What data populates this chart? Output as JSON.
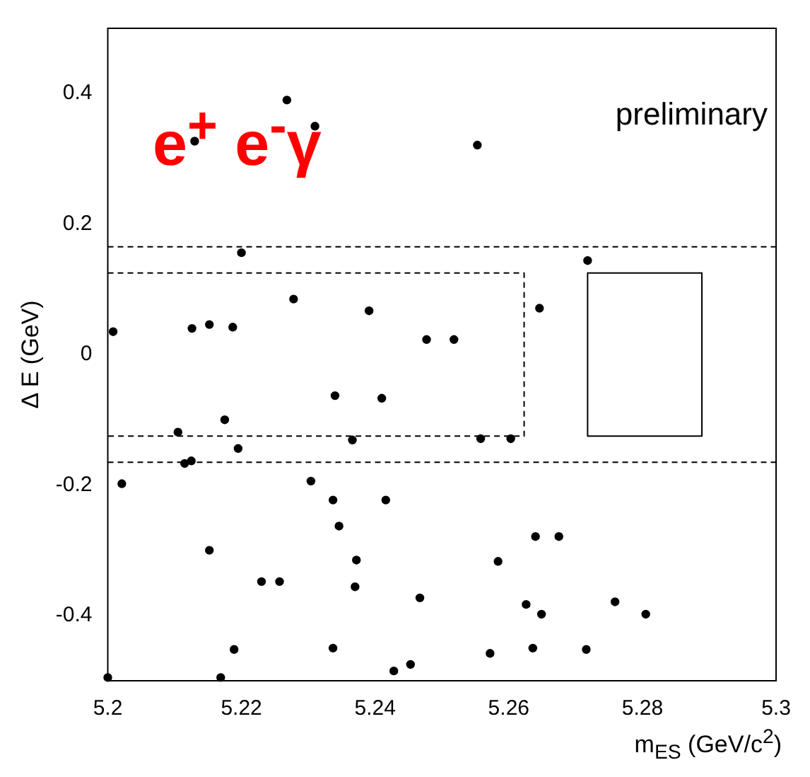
{
  "chart_data": {
    "type": "scatter",
    "xlabel": "m$_{ES}$ (GeV/c$^{2}$)",
    "ylabel": "Δ E (GeV)",
    "xlim": [
      5.2,
      5.3
    ],
    "xticks": [
      5.2,
      5.22,
      5.24,
      5.26,
      5.28,
      5.3
    ],
    "ylim": [
      -0.5,
      0.5
    ],
    "yticks": [
      -0.4,
      -0.2,
      0,
      0.2,
      0.4
    ],
    "grid": false,
    "legend": false,
    "marker": "circle",
    "annotations": [
      "e$^{+}$ e$^{-}$γ",
      "preliminary"
    ],
    "ref_lines": [
      {
        "axis": "y",
        "value": 0.165,
        "color": "#000000",
        "line_style": "dashed"
      },
      {
        "axis": "y",
        "value": -0.165,
        "color": "#000000",
        "line_style": "dashed"
      }
    ],
    "series": [
      {
        "color": "#000000",
        "x": [
          5.213,
          5.2268,
          5.231,
          5.2553,
          5.22,
          5.2718,
          5.2008,
          5.2126,
          5.2152,
          5.2187,
          5.2278,
          5.2391,
          5.2646,
          5.2477,
          5.2518,
          5.2105,
          5.2175,
          5.234,
          5.241,
          5.2366,
          5.2558,
          5.2603,
          5.2195,
          5.2115,
          5.2125,
          5.2021,
          5.2304,
          5.2337,
          5.2416,
          5.2346,
          5.2152,
          5.264,
          5.2675,
          5.2584,
          5.2372,
          5.223,
          5.2257,
          5.237,
          5.2467,
          5.2759,
          5.2626,
          5.2649,
          5.2805,
          5.2189,
          5.2337,
          5.2572,
          5.2636,
          5.2716,
          5.2453,
          5.2428,
          5.2169,
          5.2
        ],
        "values": [
          0.327,
          0.39,
          0.35,
          0.321,
          0.156,
          0.144,
          0.035,
          0.04,
          0.046,
          0.042,
          0.085,
          0.067,
          0.071,
          0.023,
          0.023,
          -0.119,
          -0.1,
          -0.063,
          -0.067,
          -0.131,
          -0.129,
          -0.129,
          -0.144,
          -0.167,
          -0.163,
          -0.198,
          -0.194,
          -0.223,
          -0.223,
          -0.263,
          -0.3,
          -0.279,
          -0.279,
          -0.317,
          -0.315,
          -0.348,
          -0.348,
          -0.356,
          -0.373,
          -0.379,
          -0.383,
          -0.398,
          -0.398,
          -0.452,
          -0.45,
          -0.458,
          -0.45,
          -0.452,
          -0.475,
          -0.485,
          -0.495,
          -0.495
        ]
      },
      {
        "type": "line",
        "color": "#000000",
        "line_style": "dashed",
        "marker": "none",
        "x": [
          5.2,
          5.2623,
          5.2623,
          5.2
        ],
        "values": [
          0.125,
          0.125,
          -0.125,
          -0.125
        ]
      },
      {
        "type": "line",
        "color": "#000000",
        "line_style": "solid",
        "marker": "none",
        "x": [
          5.2718,
          5.2718,
          5.2889,
          5.2889,
          5.2718,
          5.2718
        ],
        "values": [
          0,
          0.125,
          0.125,
          -0.125,
          -0.125,
          0.125
        ]
      }
    ]
  }
}
